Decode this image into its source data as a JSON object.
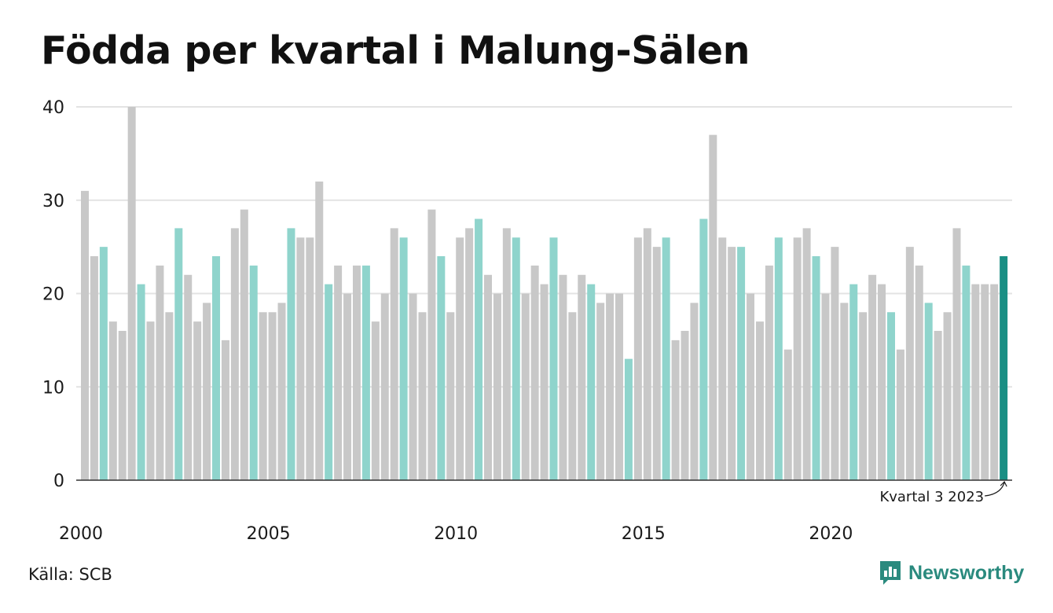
{
  "title": "Födda per kvartal i Malung-Sälen",
  "source": "Källa: SCB",
  "brand": "Newsworthy",
  "colors": {
    "q3": "#8fd4cc",
    "other": "#c8c8c8",
    "latest": "#1a8f84",
    "grid": "#e3e3e3",
    "axis": "#333333"
  },
  "chart_data": {
    "type": "bar",
    "title": "Födda per kvartal i Malung-Sälen",
    "xlabel": "",
    "ylabel": "",
    "ylim": [
      0,
      40
    ],
    "yticks": [
      0,
      10,
      20,
      30,
      40
    ],
    "xticks": [
      "2000",
      "2005",
      "2010",
      "2015",
      "2020"
    ],
    "grid": true,
    "start_year": 2000,
    "highlight_quarter": 3,
    "annotation": "Kvartal 3 2023",
    "values": [
      31,
      24,
      25,
      17,
      16,
      40,
      21,
      17,
      23,
      18,
      27,
      22,
      17,
      19,
      24,
      15,
      27,
      29,
      23,
      18,
      18,
      19,
      27,
      26,
      26,
      32,
      21,
      23,
      20,
      23,
      23,
      17,
      20,
      27,
      26,
      20,
      18,
      29,
      24,
      18,
      26,
      27,
      28,
      22,
      20,
      27,
      26,
      20,
      23,
      21,
      26,
      22,
      18,
      22,
      21,
      19,
      20,
      20,
      13,
      26,
      27,
      25,
      26,
      15,
      16,
      19,
      28,
      37,
      26,
      25,
      25,
      20,
      17,
      23,
      26,
      14,
      26,
      27,
      24,
      20,
      25,
      19,
      21,
      18,
      22,
      21,
      18,
      14,
      25,
      23,
      19,
      16,
      18,
      27,
      23,
      21,
      21,
      21,
      24
    ]
  }
}
